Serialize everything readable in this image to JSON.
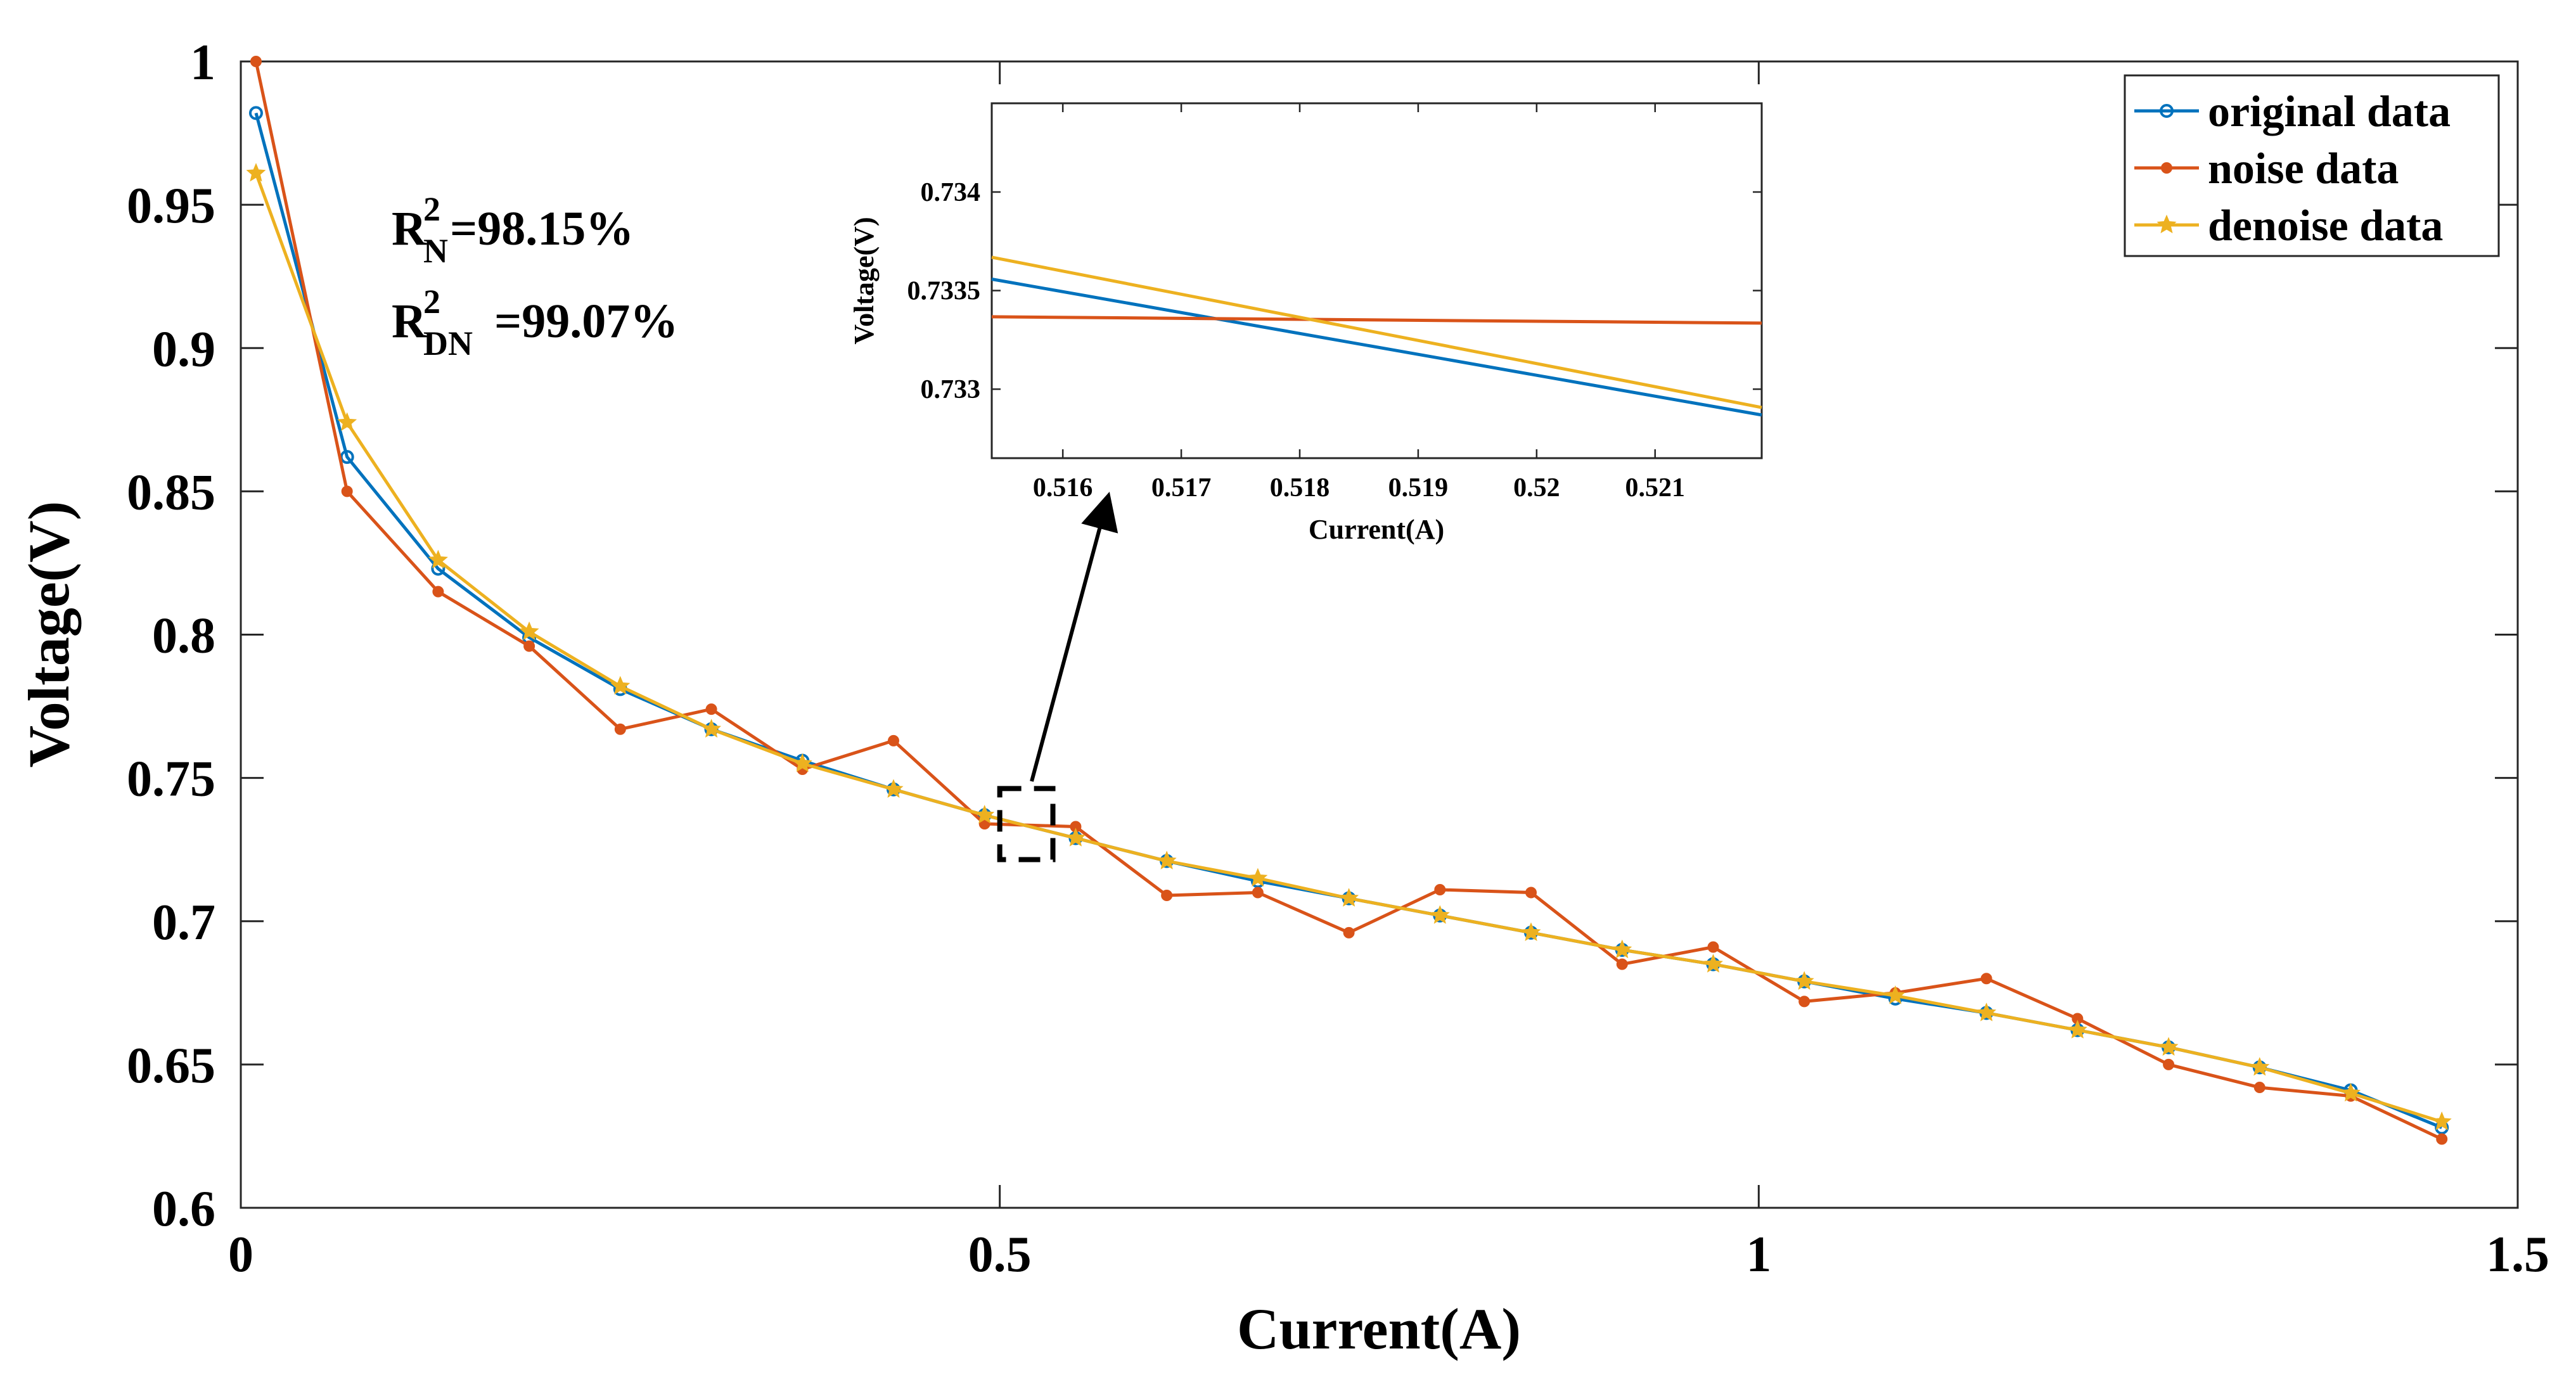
{
  "chart_data": {
    "type": "line",
    "xlabel": "Current(A)",
    "ylabel": "Voltage(V)",
    "xlim": [
      0,
      1.5
    ],
    "ylim": [
      0.6,
      1
    ],
    "xticks": [
      "0",
      "0.5",
      "1",
      "1.5"
    ],
    "yticks": [
      "0.6",
      "0.65",
      "0.7",
      "0.75",
      "0.8",
      "0.85",
      "0.9",
      "0.95",
      "1"
    ],
    "x": [
      0.01,
      0.07,
      0.13,
      0.19,
      0.25,
      0.31,
      0.37,
      0.43,
      0.49,
      0.55,
      0.61,
      0.67,
      0.73,
      0.79,
      0.85,
      0.91,
      0.97,
      1.03,
      1.09,
      1.15,
      1.21,
      1.27,
      1.33,
      1.39,
      1.45
    ],
    "series": [
      {
        "name": "original data",
        "color": "#0072BD",
        "marker": "circle",
        "values": [
          0.982,
          0.862,
          0.823,
          0.799,
          0.781,
          0.767,
          0.756,
          0.746,
          0.737,
          0.729,
          0.721,
          0.714,
          0.708,
          0.702,
          0.696,
          0.69,
          0.685,
          0.679,
          0.673,
          0.668,
          0.662,
          0.656,
          0.649,
          0.641,
          0.628
        ]
      },
      {
        "name": "noise data",
        "color": "#D95319",
        "marker": "dot",
        "values": [
          1.0,
          0.85,
          0.815,
          0.796,
          0.767,
          0.774,
          0.753,
          0.763,
          0.734,
          0.733,
          0.709,
          0.71,
          0.696,
          0.711,
          0.71,
          0.685,
          0.691,
          0.672,
          0.675,
          0.68,
          0.666,
          0.65,
          0.642,
          0.639,
          0.624
        ]
      },
      {
        "name": "denoise data",
        "color": "#EDB120",
        "marker": "star",
        "values": [
          0.961,
          0.874,
          0.826,
          0.801,
          0.782,
          0.767,
          0.755,
          0.746,
          0.737,
          0.729,
          0.721,
          0.715,
          0.708,
          0.702,
          0.696,
          0.69,
          0.685,
          0.679,
          0.674,
          0.668,
          0.662,
          0.656,
          0.649,
          0.64,
          0.63
        ]
      }
    ],
    "legend_position": "top-right",
    "annotations": {
      "r2_n": {
        "base": "R",
        "sup": "2",
        "sub": "N",
        "value": "=98.15%"
      },
      "r2_dn": {
        "base": "R",
        "sup": "2",
        "sub": "DN",
        "value": "=99.07%"
      }
    },
    "inset": {
      "xlabel": "Current(A)",
      "ylabel": "Voltage(V)",
      "xlim": [
        0.5154,
        0.5219
      ],
      "ylim": [
        0.73265,
        0.73445
      ],
      "xticks": [
        "0.516",
        "0.517",
        "0.518",
        "0.519",
        "0.52",
        "0.521"
      ],
      "yticks": [
        "0.733",
        "0.7335",
        "0.734"
      ],
      "zoom_box_x": [
        0.5,
        0.535
      ],
      "zoom_box_y": [
        0.7215,
        0.7463
      ],
      "lines": [
        {
          "name": "original data",
          "x": [
            0.5154,
            0.5219
          ],
          "y": [
            0.733558,
            0.732869
          ]
        },
        {
          "name": "noise data",
          "x": [
            0.5154,
            0.5219
          ],
          "y": [
            0.733367,
            0.733335
          ]
        },
        {
          "name": "denoise data",
          "x": [
            0.5154,
            0.5219
          ],
          "y": [
            0.733669,
            0.732907
          ]
        }
      ]
    }
  }
}
